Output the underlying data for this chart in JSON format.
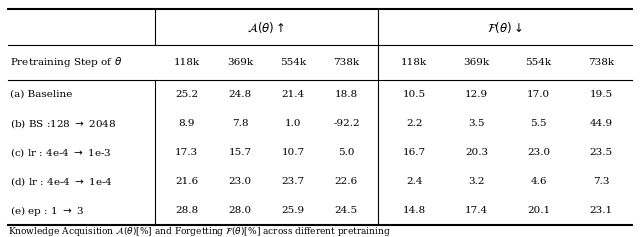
{
  "col_header_label": "Pretraining Step of $\\theta$",
  "step_labels": [
    "118k",
    "369k",
    "554k",
    "738k",
    "118k",
    "369k",
    "554k",
    "738k"
  ],
  "group_a_label": "$\\mathcal{A}(\\theta)\\uparrow$",
  "group_f_label": "$\\mathcal{F}(\\theta)\\downarrow$",
  "row_labels": [
    "(a) Baseline",
    "(b) BS :128 $\\rightarrow$ 2048",
    "(c) lr : 4e-4 $\\rightarrow$ 1e-3",
    "(d) lr : 4e-4 $\\rightarrow$ 1e-4",
    "(e) ep : 1 $\\rightarrow$ 3"
  ],
  "data": [
    [
      "25.2",
      "24.8",
      "21.4",
      "18.8",
      "10.5",
      "12.9",
      "17.0",
      "19.5"
    ],
    [
      "8.9",
      "7.8",
      "1.0",
      "-92.2",
      "2.2",
      "3.5",
      "5.5",
      "44.9"
    ],
    [
      "17.3",
      "15.7",
      "10.7",
      "5.0",
      "16.7",
      "20.3",
      "23.0",
      "23.5"
    ],
    [
      "21.6",
      "23.0",
      "23.7",
      "22.6",
      "2.4",
      "3.2",
      "4.6",
      "7.3"
    ],
    [
      "28.8",
      "28.0",
      "25.9",
      "24.5",
      "14.8",
      "17.4",
      "20.1",
      "23.1"
    ]
  ],
  "caption": "Knowledge Acquisition $\\mathcal{A}(\\theta)$[%] and Forgetting $\\mathcal{F}(\\theta)$[%] across different pretraining",
  "bg_color": "#ffffff",
  "text_color": "#000000",
  "fontsize": 7.5,
  "header_fontsize": 8.5,
  "caption_fontsize": 6.5
}
